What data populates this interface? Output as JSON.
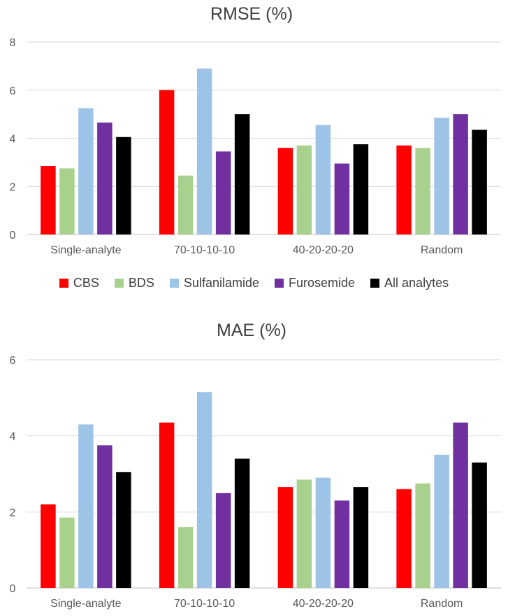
{
  "chart_data": [
    {
      "type": "bar",
      "title": "RMSE (%)",
      "categories": [
        "Single-analyte",
        "70-10-10-10",
        "40-20-20-20",
        "Random"
      ],
      "ylim": [
        0,
        8
      ],
      "yticks": [
        0,
        2,
        4,
        6,
        8
      ],
      "grid": true,
      "series": [
        {
          "name": "CBS",
          "values": [
            2.85,
            6.0,
            3.6,
            3.7
          ]
        },
        {
          "name": "BDS",
          "values": [
            2.75,
            2.45,
            3.7,
            3.6
          ]
        },
        {
          "name": "Sulfanilamide",
          "values": [
            5.25,
            6.9,
            4.55,
            4.85
          ]
        },
        {
          "name": "Furosemide",
          "values": [
            4.65,
            3.45,
            2.95,
            5.0
          ]
        },
        {
          "name": "All analytes",
          "values": [
            4.05,
            5.0,
            3.75,
            4.35
          ]
        }
      ]
    },
    {
      "type": "bar",
      "title": "MAE (%)",
      "categories": [
        "Single-analyte",
        "70-10-10-10",
        "40-20-20-20",
        "Random"
      ],
      "ylim": [
        0,
        6
      ],
      "yticks": [
        0,
        2,
        4,
        6
      ],
      "grid": true,
      "series": [
        {
          "name": "CBS",
          "values": [
            2.2,
            4.35,
            2.65,
            2.6
          ]
        },
        {
          "name": "BDS",
          "values": [
            1.85,
            1.6,
            2.85,
            2.75
          ]
        },
        {
          "name": "Sulfanilamide",
          "values": [
            4.3,
            5.15,
            2.9,
            3.5
          ]
        },
        {
          "name": "Furosemide",
          "values": [
            3.75,
            2.5,
            2.3,
            4.35
          ]
        },
        {
          "name": "All analytes",
          "values": [
            3.05,
            3.4,
            2.65,
            3.3
          ]
        }
      ]
    }
  ],
  "legend": {
    "placement": "between charts",
    "items": [
      {
        "label": "CBS",
        "color": "#FF0000"
      },
      {
        "label": "BDS",
        "color": "#A9D18E"
      },
      {
        "label": "Sulfanilamide",
        "color": "#9DC3E6"
      },
      {
        "label": "Furosemide",
        "color": "#7030A0"
      },
      {
        "label": "All analytes",
        "color": "#000000"
      }
    ]
  }
}
